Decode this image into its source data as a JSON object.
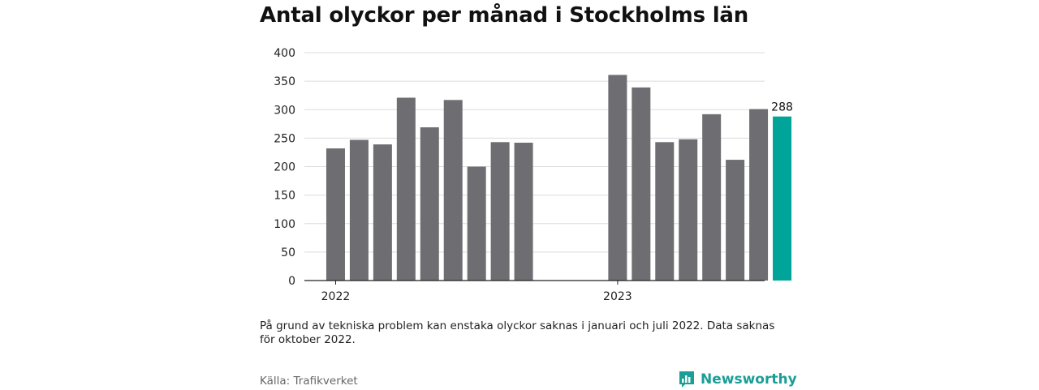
{
  "title": "Antal olyckor per månad i Stockholms län",
  "note": "På grund av tekniska problem kan enstaka olyckor saknas i januari och juli 2022. Data saknas för oktober 2022.",
  "source": "Källa: Trafikverket",
  "brand": {
    "name": "Newsworthy",
    "icon": "newsworthy-logo-icon",
    "color": "#1a9e96"
  },
  "chart_data": {
    "type": "bar",
    "categories": [
      "2022-01",
      "2022-02",
      "2022-03",
      "2022-04",
      "2022-05",
      "2022-06",
      "2022-07",
      "2022-08",
      "2022-09",
      "2022-10",
      "2022-11",
      "2022-12",
      "2023-01",
      "2023-02",
      "2023-03",
      "2023-04",
      "2023-05",
      "2023-06",
      "2023-07",
      "2023-08",
      "2023-09"
    ],
    "values": [
      232,
      247,
      239,
      321,
      269,
      317,
      200,
      243,
      242,
      null,
      null,
      null,
      361,
      339,
      243,
      248,
      292,
      212,
      301,
      288,
      null
    ],
    "highlight_category": "2023-08",
    "data_labels": [
      {
        "category": "2023-08",
        "text": "288"
      }
    ],
    "x_tick_labels": [
      {
        "category": "2022-01",
        "text": "2022"
      },
      {
        "category": "2023-01",
        "text": "2023"
      }
    ],
    "y_ticks": [
      0,
      50,
      100,
      150,
      200,
      250,
      300,
      350,
      400
    ],
    "ylim": [
      0,
      400
    ],
    "grid": true,
    "colors": {
      "bar": "#6e6d72",
      "highlight": "#00a499",
      "grid": "#dcdcdc",
      "axis": "#222222"
    },
    "title": "Antal olyckor per månad i Stockholms län",
    "xlabel": "",
    "ylabel": ""
  }
}
